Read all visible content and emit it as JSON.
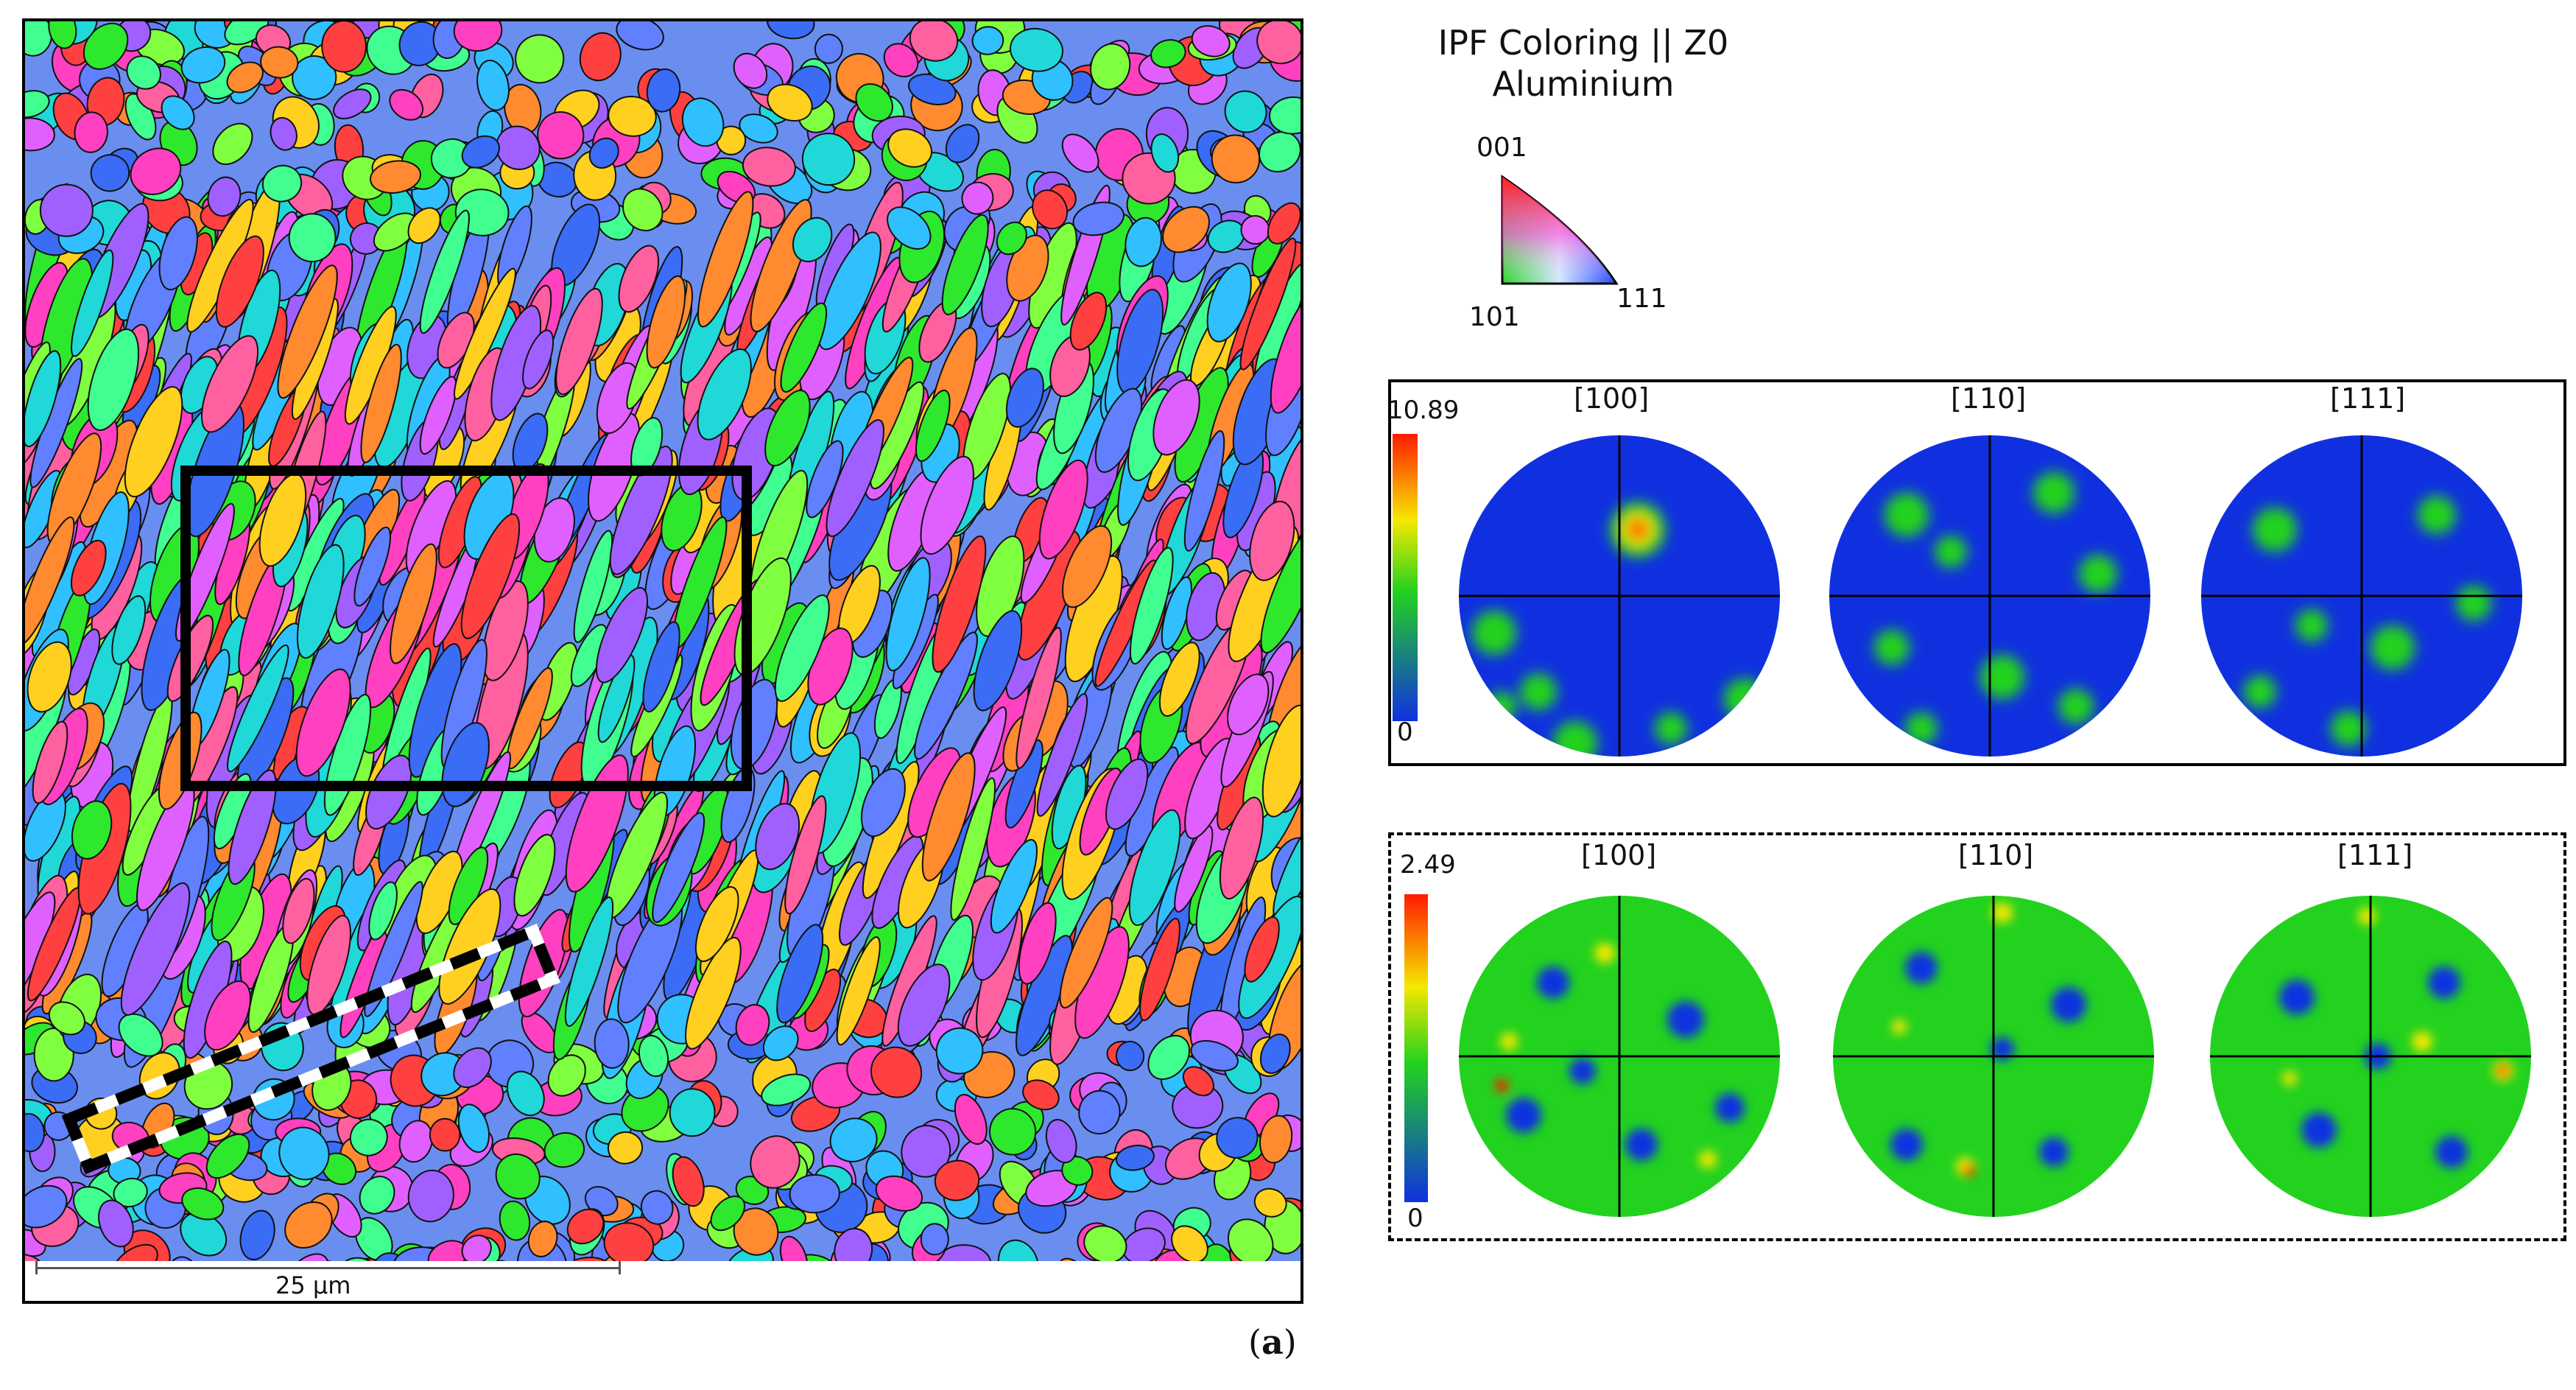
{
  "figure": {
    "panel_label": "a",
    "scalebar_label": "25 µm",
    "ipf_legend": {
      "title_line1": "IPF Coloring || Z0",
      "title_line2": "Aluminium",
      "vertex_001": "001",
      "vertex_101": "101",
      "vertex_111": "111"
    },
    "pole_figures_top": {
      "colorbar_max": "10.89",
      "colorbar_min": "0",
      "labels": [
        "[100]",
        "[110]",
        "[111]"
      ]
    },
    "pole_figures_bottom": {
      "colorbar_max": "2.49",
      "colorbar_min": "0",
      "labels": [
        "[100]",
        "[110]",
        "[111]"
      ]
    },
    "colors": {
      "pf_background": "#1030e0",
      "pf_green": "#22d21e",
      "pf_red": "#ff1a00",
      "pf_yellow": "#f5e800"
    }
  }
}
